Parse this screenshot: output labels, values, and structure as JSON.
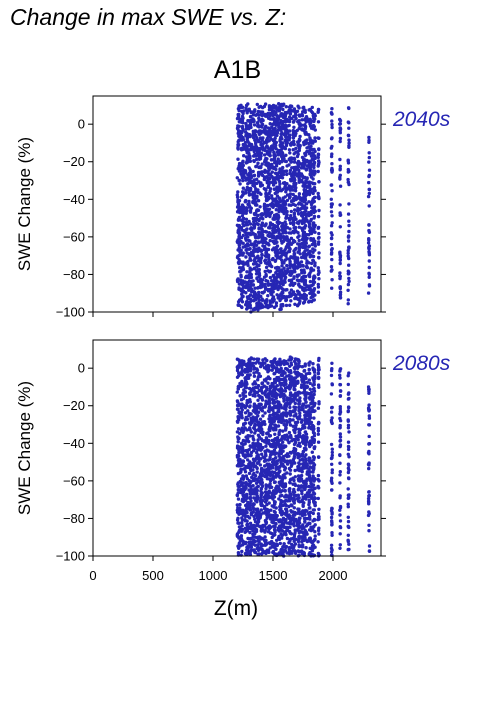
{
  "page": {
    "title": "Change in max SWE vs. Z:",
    "scenario": "A1B",
    "accent_color": "#2626b4"
  },
  "chart_data": [
    {
      "type": "scatter",
      "panel_label": "2040s",
      "ylabel": "SWE Change (%)",
      "xlabel": "",
      "xlim": [
        0,
        2400
      ],
      "ylim": [
        -100,
        15
      ],
      "yticks": [
        0,
        -20,
        -40,
        -60,
        -80,
        -100
      ],
      "xticks": [
        0,
        500,
        1000,
        1500,
        2000
      ],
      "show_x_tick_labels": false,
      "grid": false,
      "color": "#2626b4",
      "x_columns": [
        1215,
        1245,
        1280,
        1310,
        1345,
        1375,
        1405,
        1440,
        1470,
        1500,
        1525,
        1555,
        1580,
        1610,
        1645,
        1680,
        1715,
        1750,
        1775,
        1810,
        1840,
        1880,
        1990,
        2060,
        2130,
        2300
      ],
      "y_range_by_column": [
        [
          -97,
          10
        ],
        [
          -98,
          11
        ],
        [
          -99,
          11
        ],
        [
          -100,
          11
        ],
        [
          -99,
          11
        ],
        [
          -99,
          11
        ],
        [
          -98,
          10
        ],
        [
          -99,
          11
        ],
        [
          -98,
          10
        ],
        [
          -98,
          10
        ],
        [
          -97,
          12
        ],
        [
          -99,
          12
        ],
        [
          -98,
          11
        ],
        [
          -97,
          10
        ],
        [
          -97,
          10
        ],
        [
          -96,
          10
        ],
        [
          -97,
          10
        ],
        [
          -96,
          9
        ],
        [
          -95,
          9
        ],
        [
          -95,
          8
        ],
        [
          -94,
          9
        ],
        [
          -90,
          8
        ],
        [
          -93,
          9
        ],
        [
          -95,
          8
        ],
        [
          -96,
          10
        ],
        [
          -90,
          -7
        ]
      ]
    },
    {
      "type": "scatter",
      "panel_label": "2080s",
      "ylabel": "SWE Change (%)",
      "xlabel": "Z(m)",
      "xlim": [
        0,
        2400
      ],
      "ylim": [
        -100,
        15
      ],
      "yticks": [
        0,
        -20,
        -40,
        -60,
        -80,
        -100
      ],
      "xticks": [
        0,
        500,
        1000,
        1500,
        2000
      ],
      "show_x_tick_labels": true,
      "grid": false,
      "color": "#2626b4",
      "x_columns": [
        1215,
        1245,
        1280,
        1310,
        1345,
        1375,
        1405,
        1440,
        1470,
        1500,
        1525,
        1555,
        1580,
        1610,
        1645,
        1680,
        1715,
        1750,
        1775,
        1810,
        1840,
        1880,
        1990,
        2060,
        2130,
        2300
      ],
      "y_range_by_column": [
        [
          -100,
          5
        ],
        [
          -100,
          5
        ],
        [
          -100,
          5
        ],
        [
          -100,
          6
        ],
        [
          -100,
          6
        ],
        [
          -100,
          6
        ],
        [
          -100,
          6
        ],
        [
          -100,
          5
        ],
        [
          -100,
          5
        ],
        [
          -100,
          5
        ],
        [
          -100,
          5
        ],
        [
          -100,
          5
        ],
        [
          -100,
          4
        ],
        [
          -100,
          5
        ],
        [
          -100,
          6
        ],
        [
          -100,
          6
        ],
        [
          -100,
          6
        ],
        [
          -100,
          5
        ],
        [
          -100,
          4
        ],
        [
          -100,
          4
        ],
        [
          -100,
          3
        ],
        [
          -100,
          6
        ],
        [
          -100,
          5
        ],
        [
          -100,
          3
        ],
        [
          -99,
          5
        ],
        [
          -98,
          -6
        ]
      ]
    }
  ]
}
